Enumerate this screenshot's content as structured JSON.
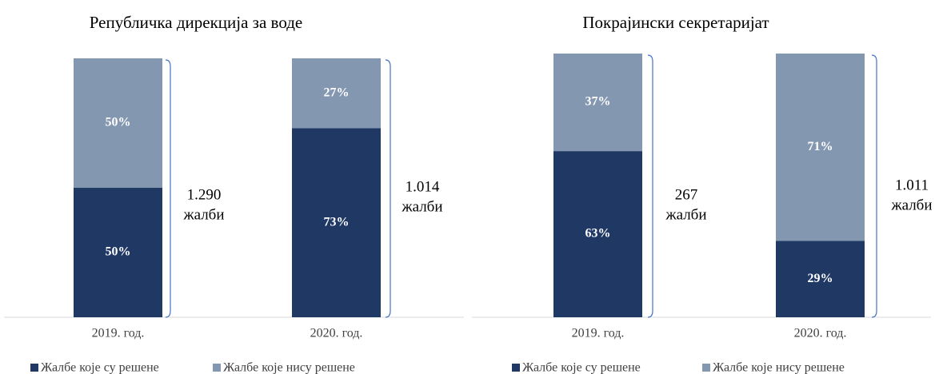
{
  "chart_data": [
    {
      "type": "bar",
      "stacked": true,
      "title": "Републичка дирекција за воде",
      "categories": [
        "2019. год.",
        "2020. год."
      ],
      "series": [
        {
          "name": "Жалбе које су решене",
          "color": "#1f3864",
          "values": [
            50,
            73
          ],
          "value_labels": [
            "50%",
            "73%"
          ]
        },
        {
          "name": "Жалбе које нису решене",
          "color": "#8497b0",
          "values": [
            50,
            27
          ],
          "value_labels": [
            "50%",
            "27%"
          ]
        }
      ],
      "annotations": [
        [
          "1.290",
          "жалби"
        ],
        [
          "1.014",
          "жалби"
        ]
      ]
    },
    {
      "type": "bar",
      "stacked": true,
      "title": "Покрајински секретаријат",
      "categories": [
        "2019. год.",
        "2020. год."
      ],
      "series": [
        {
          "name": "Жалбе које су решене",
          "color": "#1f3864",
          "values": [
            63,
            29
          ],
          "value_labels": [
            "63%",
            "29%"
          ]
        },
        {
          "name": "Жалбе које нису решене",
          "color": "#8497b0",
          "values": [
            37,
            71
          ],
          "value_labels": [
            "37%",
            "71%"
          ]
        }
      ],
      "annotations": [
        [
          "267",
          "жалби"
        ],
        [
          "1.011",
          "жалби"
        ]
      ]
    }
  ]
}
